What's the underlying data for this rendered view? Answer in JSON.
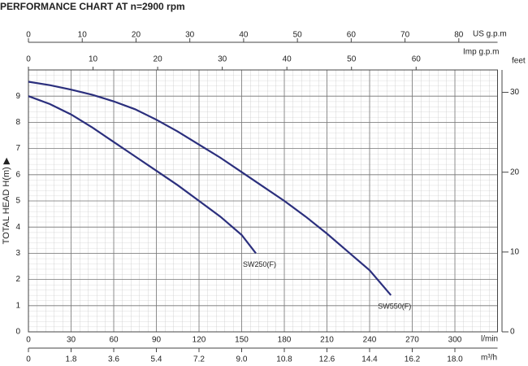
{
  "chart_data": {
    "type": "line",
    "title": "PERFORMANCE CHART AT n=2900 rpm",
    "x_label": "l/min",
    "y_label": "TOTAL HEAD H(m) ▶",
    "xlim": [
      0,
      330
    ],
    "xticks": [
      0,
      30,
      60,
      90,
      120,
      150,
      180,
      210,
      240,
      270,
      300
    ],
    "ylim": [
      0,
      10
    ],
    "yticks": [
      0,
      1,
      2,
      3,
      4,
      5,
      6,
      7,
      8,
      9
    ],
    "grid": true,
    "minor_grid": true,
    "series": [
      {
        "name": "SW250(F)",
        "color": "#2b2f7d",
        "x": [
          0,
          15,
          30,
          45,
          60,
          75,
          90,
          105,
          120,
          135,
          150,
          160
        ],
        "values": [
          9.0,
          8.7,
          8.3,
          7.8,
          7.25,
          6.7,
          6.15,
          5.6,
          5.0,
          4.4,
          3.7,
          3.0
        ]
      },
      {
        "name": "SW550(F)",
        "color": "#2b2f7d",
        "x": [
          0,
          15,
          30,
          45,
          60,
          75,
          90,
          105,
          120,
          135,
          150,
          165,
          180,
          195,
          210,
          225,
          240,
          255
        ],
        "values": [
          9.55,
          9.42,
          9.25,
          9.05,
          8.8,
          8.5,
          8.1,
          7.65,
          7.15,
          6.65,
          6.1,
          5.55,
          5.0,
          4.4,
          3.75,
          3.05,
          2.35,
          1.4
        ]
      }
    ],
    "secondary_axes": [
      {
        "position": "top",
        "label": "US g.p.m",
        "lim": [
          0,
          87.2
        ],
        "ticks": [
          0,
          10,
          20,
          30,
          40,
          50,
          60,
          70,
          80
        ]
      },
      {
        "position": "top-inner",
        "label": "Imp g.p.m",
        "lim": [
          0,
          72.6
        ],
        "ticks": [
          0,
          10,
          20,
          30,
          40,
          50,
          60
        ]
      },
      {
        "position": "bottom",
        "label": "m³/h",
        "lim": [
          0,
          19.8
        ],
        "ticks": [
          0,
          1.8,
          3.6,
          5.4,
          7.2,
          {
            "value": 9,
            "label": "9.0"
          },
          10.8,
          12.6,
          14.4,
          16.2,
          {
            "value": 18,
            "label": "18.0"
          }
        ]
      },
      {
        "position": "right",
        "label": "feet",
        "lim": [
          0,
          32.81
        ],
        "ticks": [
          0,
          10,
          20,
          30
        ]
      }
    ]
  }
}
